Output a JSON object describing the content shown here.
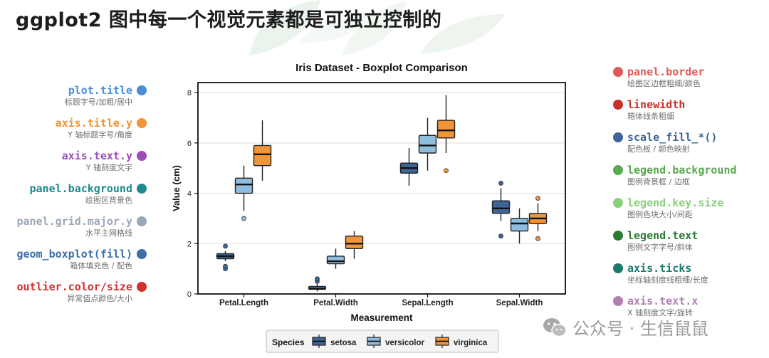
{
  "page": {
    "title": "ggplot2 图中每一个视觉元素都是可独立控制的"
  },
  "annotations_left": [
    {
      "name": "plot.title",
      "desc": "标题字号/加粗/居中",
      "color": "#4a8fd4"
    },
    {
      "name": "axis.title.y",
      "desc": "Y 轴标题字号/角度",
      "color": "#ee9535"
    },
    {
      "name": "axis.text.y",
      "desc": "Y 轴刻度文字",
      "color": "#9b4fb7"
    },
    {
      "name": "panel.background",
      "desc": "绘图区背景色",
      "color": "#1f8a8f"
    },
    {
      "name": "panel.grid.major.y",
      "desc": "水平主网格线",
      "color": "#9aa7b7"
    },
    {
      "name": "geom_boxplot(fill)",
      "desc": "箱体填充色 / 配色",
      "color": "#3f6fa6"
    },
    {
      "name": "outlier.color/size",
      "desc": "异常值点颜色/大小",
      "color": "#d32f2f"
    }
  ],
  "annotations_right": [
    {
      "name": "panel.border",
      "desc": "绘图区边框粗细/颜色",
      "color": "#e05a5a"
    },
    {
      "name": "linewidth",
      "desc": "箱体线条粗细",
      "color": "#c9302c"
    },
    {
      "name": "scale_fill_*()",
      "desc": "配色板 / 颜色映射",
      "color": "#3d6598"
    },
    {
      "name": "legend.background",
      "desc": "图例背景框 / 边框",
      "color": "#5aa84f"
    },
    {
      "name": "legend.key.size",
      "desc": "图例色块大小/间距",
      "color": "#8bcf7e"
    },
    {
      "name": "legend.text",
      "desc": "图例文字字号/斜体",
      "color": "#2c7a34"
    },
    {
      "name": "axis.ticks",
      "desc": "坐标轴刻度线粗细/长度",
      "color": "#1a7a6e"
    },
    {
      "name": "axis.text.x",
      "desc": "X 轴刻度文字/旋转",
      "color": "#b07fb3"
    }
  ],
  "watermark": {
    "text": "公众号 · 生信鼠鼠"
  },
  "chart_data": {
    "type": "boxplot",
    "title": "Iris Dataset - Boxplot Comparison",
    "xlabel": "Measurement",
    "ylabel": "Value (cm)",
    "ylim": [
      0,
      8.4
    ],
    "yticks": [
      0,
      2,
      4,
      6,
      8
    ],
    "grid": "major-y",
    "categories": [
      "Petal.Length",
      "Petal.Width",
      "Sepal.Length",
      "Sepal.Width"
    ],
    "legend": {
      "title": "Species",
      "position": "bottom"
    },
    "series": [
      {
        "name": "setosa",
        "color": "#3d6598",
        "boxes": [
          {
            "min": 1.3,
            "q1": 1.4,
            "median": 1.5,
            "q3": 1.6,
            "max": 1.7,
            "outliers": [
              1.9,
              1.0,
              1.1
            ]
          },
          {
            "min": 0.1,
            "q1": 0.2,
            "median": 0.2,
            "q3": 0.3,
            "max": 0.4,
            "outliers": [
              0.5,
              0.6
            ]
          },
          {
            "min": 4.3,
            "q1": 4.8,
            "median": 5.0,
            "q3": 5.2,
            "max": 5.8,
            "outliers": []
          },
          {
            "min": 2.9,
            "q1": 3.2,
            "median": 3.4,
            "q3": 3.7,
            "max": 4.2,
            "outliers": [
              4.4,
              2.3
            ]
          }
        ]
      },
      {
        "name": "versicolor",
        "color": "#8fbde0",
        "boxes": [
          {
            "min": 3.3,
            "q1": 4.0,
            "median": 4.35,
            "q3": 4.6,
            "max": 5.1,
            "outliers": [
              3.0
            ]
          },
          {
            "min": 1.0,
            "q1": 1.2,
            "median": 1.3,
            "q3": 1.5,
            "max": 1.8,
            "outliers": []
          },
          {
            "min": 4.9,
            "q1": 5.6,
            "median": 5.9,
            "q3": 6.3,
            "max": 7.0,
            "outliers": []
          },
          {
            "min": 2.0,
            "q1": 2.5,
            "median": 2.8,
            "q3": 3.0,
            "max": 3.4,
            "outliers": []
          }
        ]
      },
      {
        "name": "virginica",
        "color": "#f0953a",
        "boxes": [
          {
            "min": 4.5,
            "q1": 5.1,
            "median": 5.55,
            "q3": 5.9,
            "max": 6.9,
            "outliers": []
          },
          {
            "min": 1.4,
            "q1": 1.8,
            "median": 2.0,
            "q3": 2.3,
            "max": 2.5,
            "outliers": []
          },
          {
            "min": 5.6,
            "q1": 6.2,
            "median": 6.5,
            "q3": 6.9,
            "max": 7.9,
            "outliers": [
              4.9
            ]
          },
          {
            "min": 2.5,
            "q1": 2.8,
            "median": 3.0,
            "q3": 3.2,
            "max": 3.6,
            "outliers": [
              3.8,
              2.2
            ]
          }
        ]
      }
    ]
  }
}
